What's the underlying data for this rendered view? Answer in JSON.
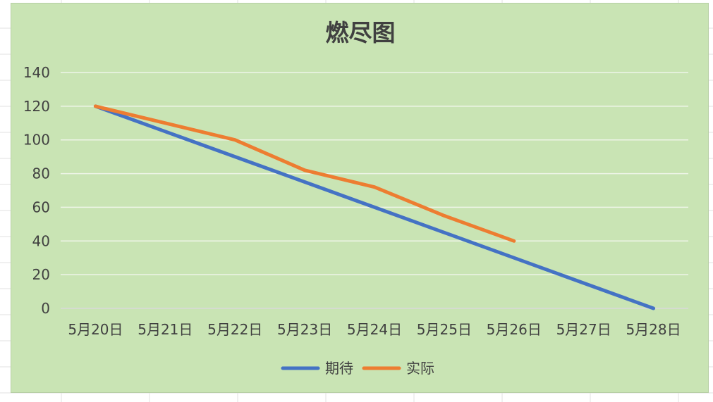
{
  "chart_data": {
    "type": "line",
    "title": "燃尽图",
    "categories": [
      "5月20日",
      "5月21日",
      "5月22日",
      "5月23日",
      "5月24日",
      "5月25日",
      "5月26日",
      "5月27日",
      "5月28日"
    ],
    "ylim": [
      0,
      140
    ],
    "yticks": [
      0,
      20,
      40,
      60,
      80,
      100,
      120,
      140
    ],
    "grid": true,
    "legend_position": "bottom",
    "series": [
      {
        "name": "期待",
        "color": "#4472c4",
        "values": [
          120,
          105,
          90,
          75,
          60,
          45,
          30,
          15,
          0
        ]
      },
      {
        "name": "实际",
        "color": "#ed7d31",
        "values": [
          120,
          110,
          100,
          82,
          72,
          55,
          40,
          null,
          null
        ]
      }
    ]
  }
}
